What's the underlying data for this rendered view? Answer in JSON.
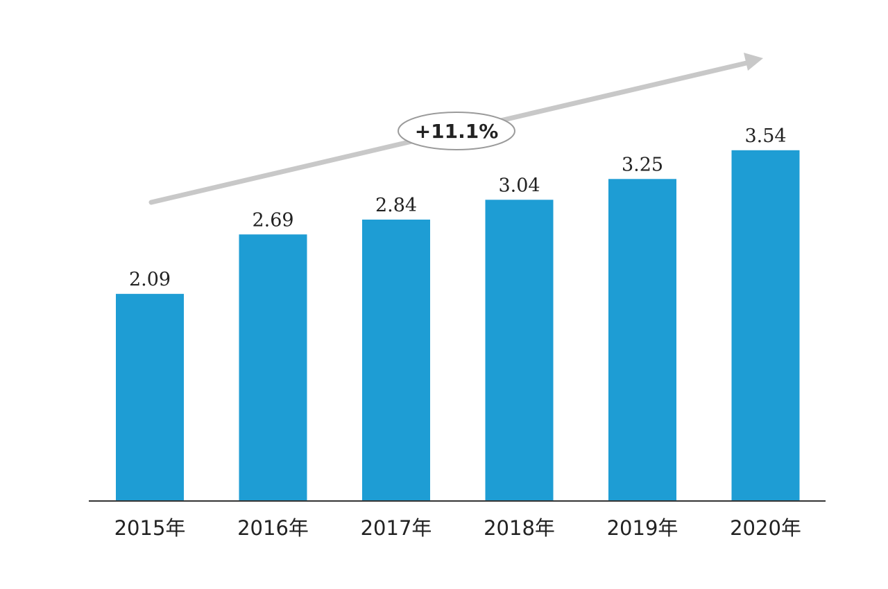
{
  "chart_data": {
    "type": "bar",
    "categories": [
      "2015年",
      "2016年",
      "2017年",
      "2018年",
      "2019年",
      "2020年"
    ],
    "values": [
      2.09,
      2.69,
      2.84,
      3.04,
      3.25,
      3.54
    ],
    "value_labels": [
      "2.09",
      "2.69",
      "2.84",
      "3.04",
      "3.25",
      "3.54"
    ],
    "ylim": [
      0,
      4
    ],
    "grid": false,
    "legend": "none",
    "annotation": {
      "text": "+11.1%",
      "shape": "upward-trend-arrow"
    },
    "colors": {
      "bar": "#1e9dd4",
      "axis": "#333333",
      "arrow": "#c8c8c8",
      "annotation_border": "#9a9a9a"
    }
  }
}
